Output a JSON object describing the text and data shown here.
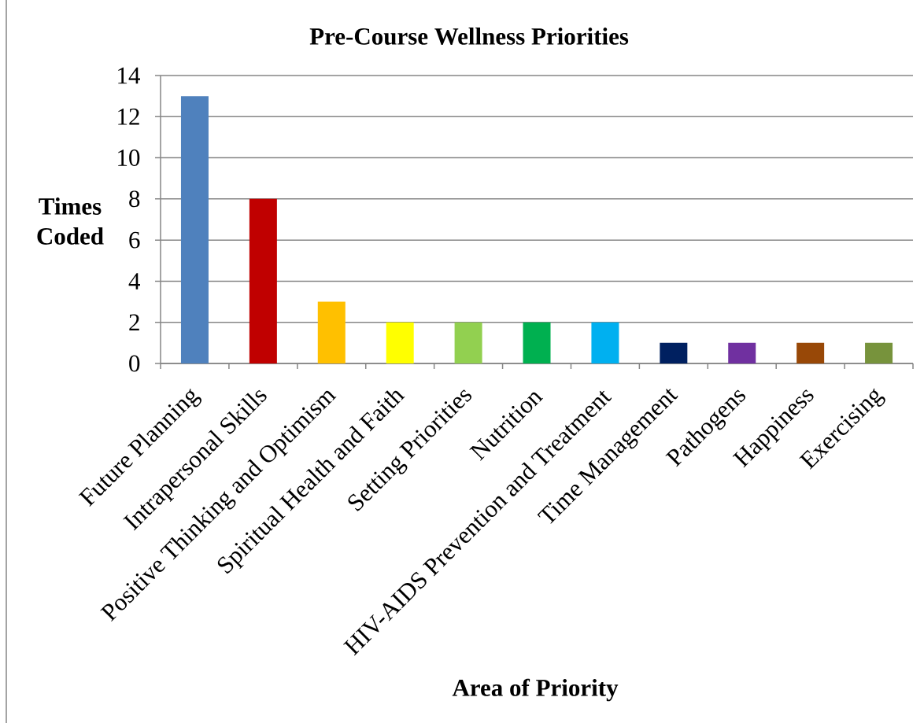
{
  "chart_data": {
    "type": "bar",
    "title": "Pre-Course Wellness Priorities",
    "xlabel": "Area of Priority",
    "ylabel": "Times Coded",
    "categories": [
      "Future Planning",
      "Intrapersonal Skills",
      "Positive Thinking and Optimism",
      "Spiritual Health and Faith",
      "Setting Priorities",
      "Nutrition",
      "HIV-AIDS Prevention and Treatment",
      "Time Management",
      "Pathogens",
      "Happiness",
      "Exercising"
    ],
    "values": [
      13,
      8,
      3,
      2,
      2,
      2,
      2,
      1,
      1,
      1,
      1
    ],
    "colors": [
      "#4f81bd",
      "#c00000",
      "#ffc000",
      "#ffff00",
      "#92d050",
      "#00b050",
      "#00b0f0",
      "#002060",
      "#7030a0",
      "#984807",
      "#77933c"
    ],
    "ylim": [
      0,
      14
    ],
    "yticks": [
      0,
      2,
      4,
      6,
      8,
      10,
      12,
      14
    ],
    "grid": "y"
  }
}
